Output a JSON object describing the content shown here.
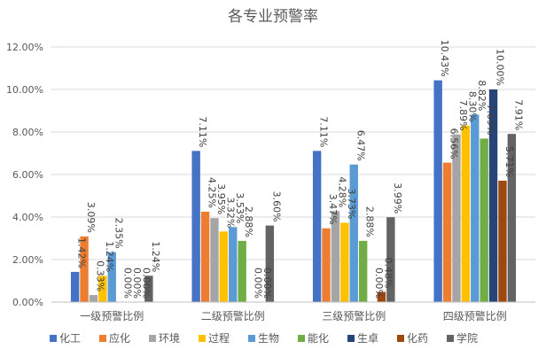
{
  "chart_data": {
    "type": "bar",
    "title": "各专业预警率",
    "xlabel": "",
    "ylabel": "",
    "ylim": [
      0,
      12
    ],
    "yticks": [
      "0.00%",
      "2.00%",
      "4.00%",
      "6.00%",
      "8.00%",
      "10.00%",
      "12.00%"
    ],
    "grid": true,
    "legend_position": "bottom",
    "categories": [
      "一级预警比例",
      "二级预警比例",
      "三级预警比例",
      "四级预警比例"
    ],
    "series": [
      {
        "name": "化工",
        "color": "#4472C4",
        "values": [
          1.42,
          7.11,
          7.11,
          10.43
        ],
        "labels": [
          "1.42%",
          "7.11%",
          "7.11%",
          "10.43%"
        ]
      },
      {
        "name": "应化",
        "color": "#ED7D31",
        "values": [
          3.09,
          4.25,
          3.47,
          6.56
        ],
        "labels": [
          "3.09%",
          "4.25%",
          "3.47%",
          "6.56%"
        ]
      },
      {
        "name": "环境",
        "color": "#A5A5A5",
        "values": [
          0.33,
          3.95,
          4.28,
          7.89
        ],
        "labels": [
          "0.33%",
          "3.95%",
          "4.28%",
          "7.89%"
        ]
      },
      {
        "name": "过程",
        "color": "#FFC000",
        "values": [
          1.24,
          3.32,
          3.73,
          8.3
        ],
        "labels": [
          "1.24%",
          "3.32%",
          "3.73%",
          "8.30%"
        ]
      },
      {
        "name": "生物",
        "color": "#5B9BD5",
        "values": [
          2.35,
          3.53,
          6.47,
          8.82
        ],
        "labels": [
          "2.35%",
          "3.53%",
          "6.47%",
          "8.82%"
        ]
      },
      {
        "name": "能化",
        "color": "#70AD47",
        "values": [
          0.0,
          2.88,
          2.88,
          7.69
        ],
        "labels": [
          "0.00%",
          "2.88%",
          "2.88%",
          "7.69%"
        ]
      },
      {
        "name": "生卓",
        "color": "#264478",
        "values": [
          0.0,
          0.0,
          0.0,
          10.0
        ],
        "labels": [
          "0.00%",
          "0.00%",
          "0.00%",
          "10.00%"
        ]
      },
      {
        "name": "化药",
        "color": "#9E480E",
        "values": [
          0.0,
          0.0,
          0.48,
          5.71
        ],
        "labels": [
          "0.00%",
          "0.00%",
          "0.48%",
          "5.71%"
        ]
      },
      {
        "name": "学院",
        "color": "#636363",
        "values": [
          1.24,
          3.6,
          3.99,
          7.91
        ],
        "labels": [
          "1.24%",
          "3.60%",
          "3.99%",
          "7.91%"
        ]
      }
    ]
  }
}
